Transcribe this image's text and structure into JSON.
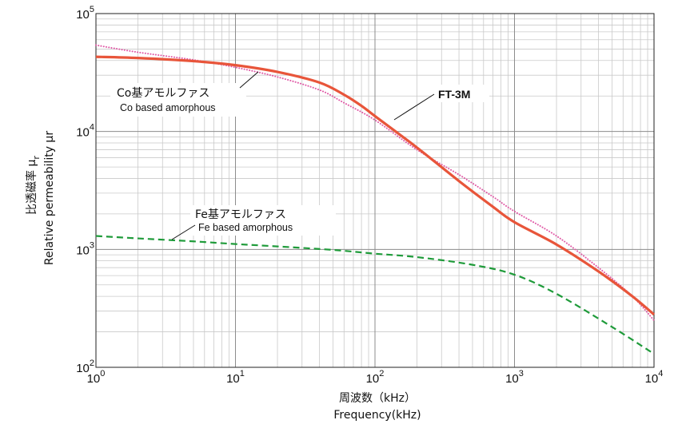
{
  "chart_data": {
    "type": "line",
    "x_scale": "log",
    "y_scale": "log",
    "xlim": [
      1,
      10000
    ],
    "ylim": [
      100,
      100000
    ],
    "grid": true,
    "x_ticks": [
      {
        "base": "10",
        "exp": "0"
      },
      {
        "base": "10",
        "exp": "1"
      },
      {
        "base": "10",
        "exp": "2"
      },
      {
        "base": "10",
        "exp": "3"
      },
      {
        "base": "10",
        "exp": "4"
      }
    ],
    "y_ticks": [
      {
        "base": "10",
        "exp": "2"
      },
      {
        "base": "10",
        "exp": "3"
      },
      {
        "base": "10",
        "exp": "4"
      },
      {
        "base": "10",
        "exp": "5"
      }
    ],
    "xlabel_jp": "周波数（kHz）",
    "xlabel_en": "Frequency(kHz)",
    "ylabel_jp": "比透磁率 μ",
    "ylabel_sub": "r",
    "ylabel_en": "Relative permeability μr",
    "series": [
      {
        "name": "FT-3M",
        "color": "#e8553a",
        "style": "solid",
        "x": [
          1,
          2,
          5,
          10,
          20,
          40,
          60,
          80,
          100,
          200,
          400,
          700,
          1000,
          2000,
          4000,
          7000,
          10000
        ],
        "y": [
          43000,
          42000,
          39500,
          36500,
          32000,
          26000,
          20500,
          16500,
          13500,
          7300,
          3800,
          2300,
          1700,
          1100,
          650,
          400,
          280
        ]
      },
      {
        "name": "Co基アモルファス",
        "name_sub": "Co based amorphous",
        "color": "#e05aa6",
        "style": "dotted",
        "x": [
          1,
          2,
          5,
          10,
          20,
          40,
          60,
          100,
          200,
          400,
          700,
          1000,
          2000,
          4000,
          7000,
          10000
        ],
        "y": [
          54000,
          47000,
          40500,
          35000,
          29000,
          22500,
          17500,
          12500,
          7000,
          4300,
          2800,
          2100,
          1300,
          700,
          400,
          250
        ]
      },
      {
        "name": "Fe基アモルファス",
        "name_sub": "Fe based amorphous",
        "color": "#1f9b3a",
        "style": "dashed",
        "x": [
          1,
          2,
          5,
          10,
          20,
          50,
          100,
          200,
          500,
          1000,
          2000,
          5000,
          10000
        ],
        "y": [
          1300,
          1240,
          1170,
          1110,
          1060,
          990,
          920,
          860,
          740,
          610,
          420,
          220,
          130
        ]
      }
    ]
  }
}
